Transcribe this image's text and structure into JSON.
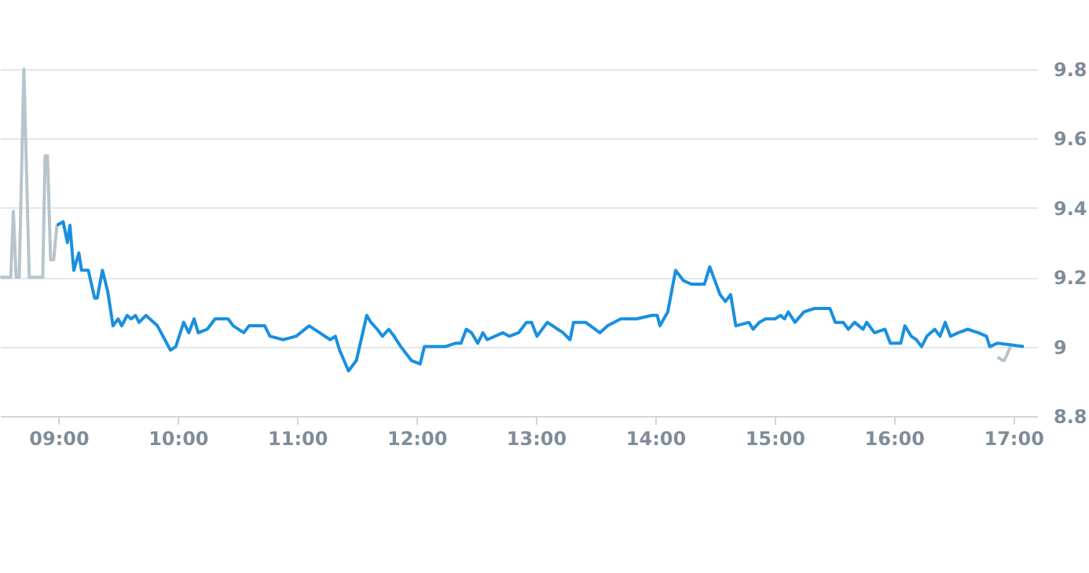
{
  "chart_data": {
    "type": "line",
    "xlim": [
      8.51,
      17.2
    ],
    "ylim": [
      8.8,
      9.8
    ],
    "xticks": [
      {
        "value": 9,
        "label": "09:00"
      },
      {
        "value": 10,
        "label": "10:00"
      },
      {
        "value": 11,
        "label": "11:00"
      },
      {
        "value": 12,
        "label": "12:00"
      },
      {
        "value": 13,
        "label": "13:00"
      },
      {
        "value": 14,
        "label": "14:00"
      },
      {
        "value": 15,
        "label": "15:00"
      },
      {
        "value": 16,
        "label": "16:00"
      },
      {
        "value": 17,
        "label": "17:00"
      }
    ],
    "yticks": [
      8.8,
      9,
      9.2,
      9.4,
      9.6,
      9.8
    ],
    "grid": "y",
    "legend": false,
    "marker": "none",
    "line_style": "solid",
    "series": [
      {
        "color": "#b8c4cc",
        "x": [
          8.513,
          8.6,
          8.622,
          8.645,
          8.671,
          8.71,
          8.755,
          8.776,
          8.868,
          8.888,
          8.908,
          8.934,
          8.96,
          8.987,
          16.825,
          16.868,
          16.912,
          16.925,
          16.977
        ],
        "values": [
          9.2,
          9.2,
          9.39,
          9.2,
          9.2,
          9.8,
          9.2,
          9.2,
          9.2,
          9.55,
          9.55,
          9.25,
          9.25,
          9.35,
          null,
          8.97,
          8.96,
          8.96,
          9.0
        ]
      },
      {
        "color": "#1a8fe0",
        "x": [
          8.987,
          9.039,
          9.075,
          9.096,
          9.128,
          9.171,
          9.193,
          9.25,
          9.303,
          9.325,
          9.368,
          9.412,
          9.457,
          9.5,
          9.53,
          9.575,
          9.609,
          9.645,
          9.675,
          9.733,
          9.829,
          9.938,
          9.983,
          10.049,
          10.092,
          10.136,
          10.171,
          10.246,
          10.312,
          10.421,
          10.464,
          10.553,
          10.596,
          10.728,
          10.772,
          10.882,
          10.991,
          11.101,
          11.188,
          11.276,
          11.32,
          11.355,
          11.43,
          11.496,
          11.583,
          11.618,
          11.671,
          11.714,
          11.767,
          11.812,
          11.868,
          11.957,
          12.03,
          12.066,
          12.109,
          12.154,
          12.241,
          12.329,
          12.372,
          12.417,
          12.461,
          12.513,
          12.557,
          12.592,
          12.724,
          12.776,
          12.855,
          12.921,
          12.964,
          13.009,
          13.096,
          13.184,
          13.228,
          13.286,
          13.316,
          13.417,
          13.536,
          13.601,
          13.711,
          13.842,
          13.974,
          14.017,
          14.039,
          14.105,
          14.171,
          14.237,
          14.303,
          14.368,
          14.412,
          14.457,
          14.5,
          14.543,
          14.588,
          14.632,
          14.675,
          14.786,
          14.82,
          14.872,
          14.925,
          15.004,
          15.049,
          15.083,
          15.114,
          15.171,
          15.246,
          15.333,
          15.421,
          15.464,
          15.509,
          15.575,
          15.618,
          15.671,
          15.741,
          15.772,
          15.838,
          15.925,
          15.97,
          16.057,
          16.092,
          16.145,
          16.188,
          16.232,
          16.276,
          16.342,
          16.386,
          16.43,
          16.474,
          16.539,
          16.618,
          16.707,
          16.775,
          16.803,
          16.868,
          17.088
        ],
        "values": [
          9.35,
          9.36,
          9.3,
          9.35,
          9.22,
          9.27,
          9.22,
          9.22,
          9.14,
          9.14,
          9.22,
          9.16,
          9.06,
          9.08,
          9.06,
          9.09,
          9.08,
          9.09,
          9.07,
          9.09,
          9.06,
          8.99,
          9.0,
          9.07,
          9.04,
          9.08,
          9.04,
          9.05,
          9.08,
          9.08,
          9.06,
          9.04,
          9.06,
          9.06,
          9.03,
          9.02,
          9.03,
          9.06,
          9.04,
          9.02,
          9.03,
          8.99,
          8.93,
          8.96,
          9.09,
          9.07,
          9.05,
          9.03,
          9.05,
          9.03,
          9.0,
          8.96,
          8.95,
          9.0,
          9.0,
          9.0,
          9.0,
          9.01,
          9.01,
          9.05,
          9.04,
          9.01,
          9.04,
          9.02,
          9.04,
          9.03,
          9.04,
          9.07,
          9.07,
          9.03,
          9.07,
          9.05,
          9.04,
          9.02,
          9.07,
          9.07,
          9.04,
          9.06,
          9.08,
          9.08,
          9.09,
          9.09,
          9.06,
          9.1,
          9.22,
          9.19,
          9.18,
          9.18,
          9.18,
          9.23,
          9.19,
          9.15,
          9.13,
          9.15,
          9.06,
          9.07,
          9.05,
          9.07,
          9.08,
          9.08,
          9.09,
          9.08,
          9.1,
          9.07,
          9.1,
          9.11,
          9.11,
          9.11,
          9.07,
          9.07,
          9.05,
          9.07,
          9.05,
          9.07,
          9.04,
          9.05,
          9.01,
          9.01,
          9.06,
          9.03,
          9.02,
          9.0,
          9.03,
          9.05,
          9.03,
          9.07,
          9.03,
          9.04,
          9.05,
          9.04,
          9.03,
          9.0,
          9.01,
          9.0
        ]
      }
    ]
  }
}
